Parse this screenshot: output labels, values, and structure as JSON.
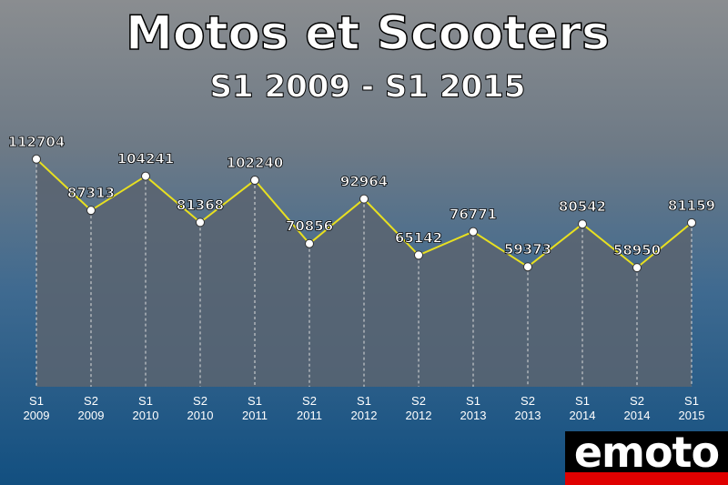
{
  "chart_data": {
    "type": "line",
    "title": "Motos et Scooters",
    "subtitle": "S1 2009 - S1 2015",
    "categories": [
      "S1 2009",
      "S2 2009",
      "S1 2010",
      "S2 2010",
      "S1 2011",
      "S2 2011",
      "S1 2012",
      "S2 2012",
      "S1 2013",
      "S2 2013",
      "S1 2014",
      "S2 2014",
      "S1 2015"
    ],
    "values": [
      112704,
      87313,
      104241,
      81368,
      102240,
      70856,
      92964,
      65142,
      76771,
      59373,
      80542,
      58950,
      81159
    ],
    "color": "#e8e020",
    "ylim": [
      0,
      150000
    ]
  },
  "logo": "emoto"
}
